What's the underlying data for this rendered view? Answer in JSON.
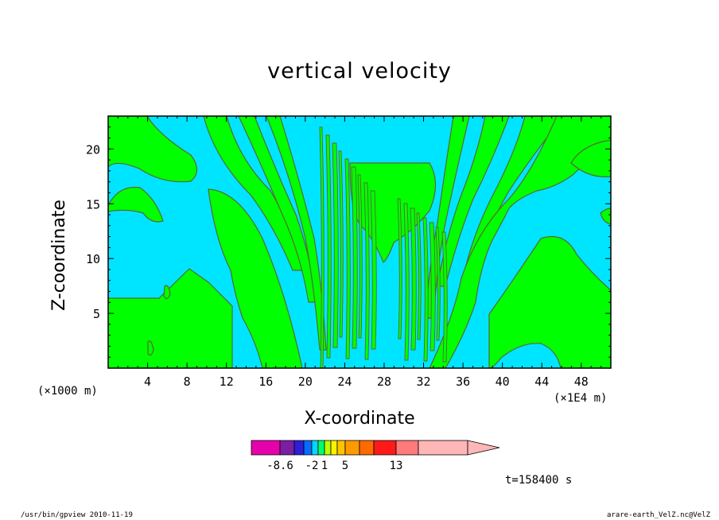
{
  "chart_data": {
    "type": "heatmap",
    "title": "vertical velocity",
    "xlabel": "X-coordinate",
    "ylabel": "Z-coordinate",
    "x_unit_left": "(×1000 m)",
    "x_unit_right": "(×1E4 m)",
    "xlim": [
      0,
      51
    ],
    "ylim": [
      0,
      23
    ],
    "x_ticks": [
      4,
      8,
      12,
      16,
      20,
      24,
      28,
      32,
      36,
      40,
      44,
      48
    ],
    "y_ticks": [
      5,
      10,
      15,
      20
    ],
    "colors": {
      "positive": "#00ff00",
      "negative": "#00e5ff",
      "contour": "#556b2f"
    },
    "colorbar": {
      "colors": [
        "#e600ac",
        "#7a1fa2",
        "#2c1fd6",
        "#0a6bff",
        "#00d8ff",
        "#00ff6a",
        "#b8ff00",
        "#fff200",
        "#ffc400",
        "#ff9a00",
        "#ff6a00",
        "#ff1a1a",
        "#ff7a7a",
        "#ffb6b6"
      ],
      "labels": [
        "-8.6",
        "-2",
        "1",
        "5",
        "13"
      ]
    },
    "time_label": "t=158400 s"
  },
  "footer": {
    "left": "/usr/bin/gpview   2010-11-19",
    "right": "arare-earth_VelZ.nc@VelZ"
  }
}
